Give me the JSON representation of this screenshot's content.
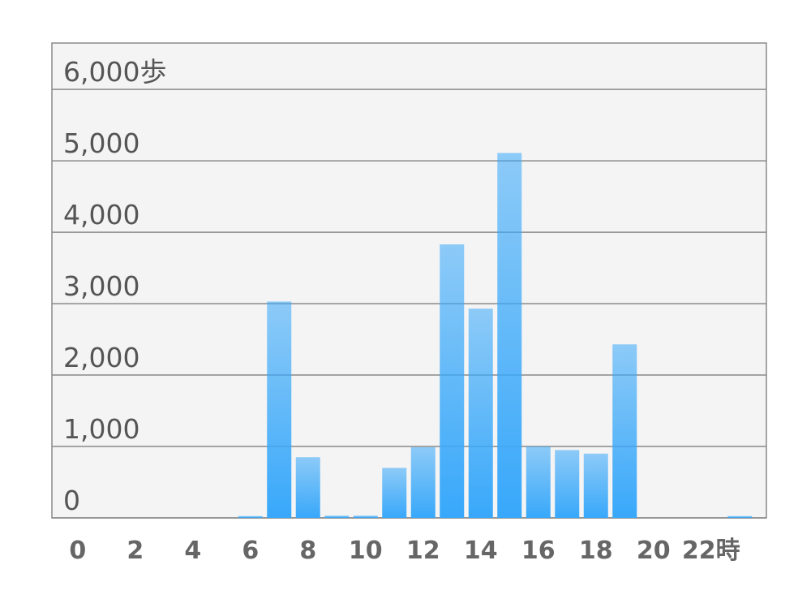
{
  "chart_data": {
    "type": "bar",
    "categories": [
      "0",
      null,
      "2",
      null,
      "4",
      null,
      "6",
      null,
      "8",
      null,
      "10",
      null,
      "12",
      null,
      "14",
      null,
      "16",
      null,
      "18",
      null,
      "20",
      null,
      "22時",
      null
    ],
    "values": [
      0,
      0,
      0,
      0,
      0,
      0,
      25,
      3030,
      850,
      30,
      30,
      700,
      990,
      3830,
      2930,
      5110,
      1000,
      950,
      900,
      2430,
      0,
      0,
      0,
      25
    ],
    "color": "#38a8fa",
    "ylim": [
      0,
      6650
    ],
    "yticks": [
      0,
      {
        "value": 1000,
        "label": "1,000"
      },
      {
        "value": 2000,
        "label": "2,000"
      },
      {
        "value": 3000,
        "label": "3,000"
      },
      {
        "value": 4000,
        "label": "4,000"
      },
      {
        "value": 5000,
        "label": "5,000"
      },
      {
        "value": 6000,
        "label": "6,000歩"
      }
    ],
    "grid": true
  }
}
